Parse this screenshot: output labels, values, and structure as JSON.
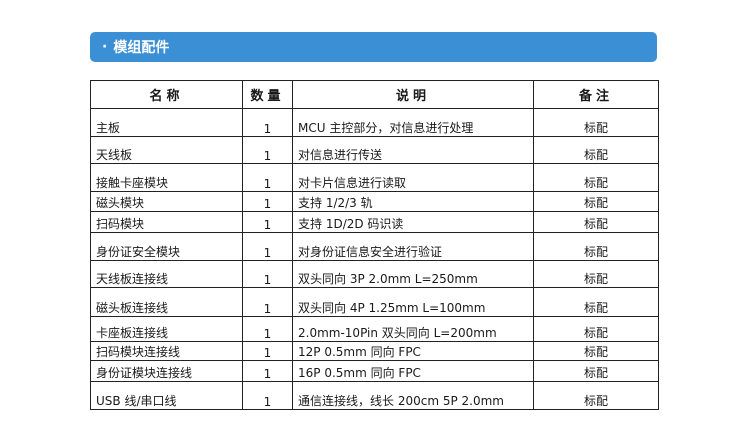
{
  "section": {
    "bullet": "·",
    "title": "模组配件"
  },
  "table": {
    "headers": {
      "name": "名称",
      "qty": "数量",
      "desc": "说明",
      "note": "备注"
    },
    "rows": [
      {
        "name": "主板",
        "qty": "1",
        "desc": "MCU 主控部分，对信息进行处理",
        "note": "标配"
      },
      {
        "name": "天线板",
        "qty": "1",
        "desc": "对信息进行传送",
        "note": "标配"
      },
      {
        "name": "接触卡座模块",
        "qty": "1",
        "desc": "对卡片信息进行读取",
        "note": "标配"
      },
      {
        "name": "磁头模块",
        "qty": "1",
        "desc": "支持 1/2/3 轨",
        "note": "标配"
      },
      {
        "name": "扫码模块",
        "qty": "1",
        "desc": "支持 1D/2D 码识读",
        "note": "标配"
      },
      {
        "name": "身份证安全模块",
        "qty": "1",
        "desc": "对身份证信息安全进行验证",
        "note": "标配"
      },
      {
        "name": "天线板连接线",
        "qty": "1",
        "desc": "双头同向 3P 2.0mm L=250mm",
        "note": "标配"
      },
      {
        "name": "磁头板连接线",
        "qty": "1",
        "desc": "双头同向 4P 1.25mm L=100mm",
        "note": "标配"
      },
      {
        "name": "卡座板连接线",
        "qty": "1",
        "desc": "2.0mm-10Pin 双头同向 L=200mm",
        "note": "标配"
      },
      {
        "name": "扫码模块连接线",
        "qty": "1",
        "desc": "12P 0.5mm 同向 FPC",
        "note": "标配"
      },
      {
        "name": "身份证模块连接线",
        "qty": "1",
        "desc": "16P 0.5mm 同向 FPC",
        "note": "标配"
      },
      {
        "name": "USB 线/串口线",
        "qty": "1",
        "desc": "通信连接线，线长 200cm 5P 2.0mm",
        "note": "标配"
      }
    ]
  }
}
